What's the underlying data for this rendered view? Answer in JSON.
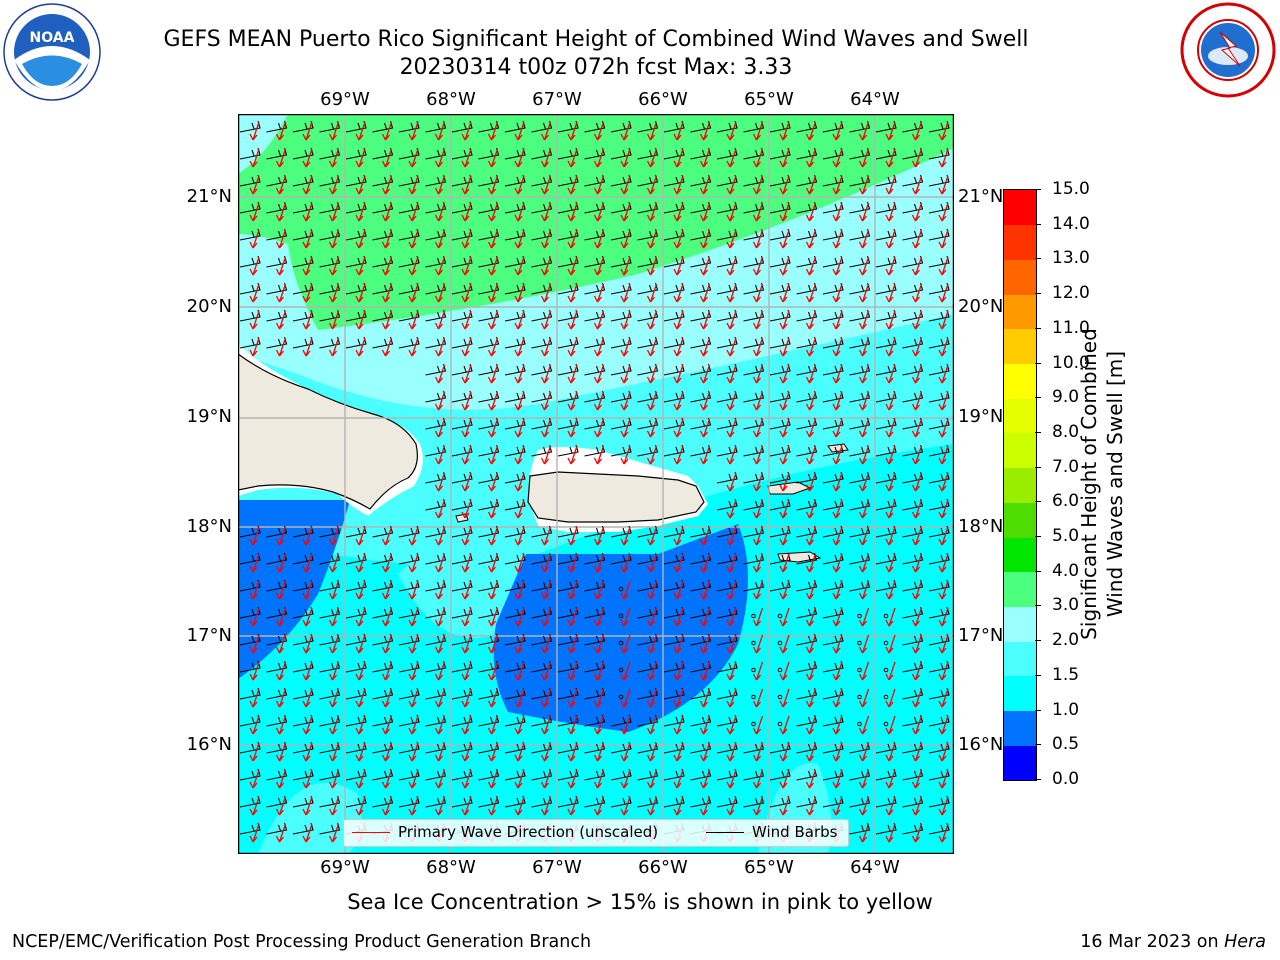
{
  "header": {
    "title_line1": "GEFS MEAN Puerto Rico Significant Height of Combined Wind Waves and Swell",
    "title_line2": "20230314 t00z 072h fcst   Max: 3.33"
  },
  "logos": {
    "left": "noaa-logo",
    "right": "nws-logo",
    "noaa_text": "NOAA"
  },
  "axes": {
    "lon_ticks": [
      "69°W",
      "68°W",
      "67°W",
      "66°W",
      "65°W",
      "64°W"
    ],
    "lat_ticks": [
      "21°N",
      "20°N",
      "19°N",
      "18°N",
      "17°N",
      "16°N"
    ]
  },
  "legend": {
    "primary_wave": "Primary Wave Direction (unscaled)",
    "wind_barbs": "Wind Barbs",
    "primary_wave_color": "#ff0000",
    "wind_barbs_color": "#000000"
  },
  "colorbar": {
    "title_line1": "Significant Height of Combined",
    "title_line2": "Wind Waves and Swell [m]",
    "ticks": [
      "0.0",
      "0.5",
      "1.0",
      "1.5",
      "2.0",
      "3.0",
      "4.0",
      "5.0",
      "6.0",
      "7.0",
      "8.0",
      "9.0",
      "10.0",
      "11.0",
      "12.0",
      "13.0",
      "14.0",
      "15.0"
    ],
    "colors": [
      "#0000ff",
      "#0073ff",
      "#00ffff",
      "#4cffff",
      "#99ffff",
      "#4dff7f",
      "#00e600",
      "#4ddd00",
      "#99ee00",
      "#ccff00",
      "#e6ff00",
      "#ffff00",
      "#ffcc00",
      "#ff9900",
      "#ff6600",
      "#ff3300",
      "#ff0000"
    ]
  },
  "map_colors": {
    "land": "#eeeadf",
    "coast": "#000000",
    "grid": "#b4b4b4"
  },
  "notes": {
    "ice": "Sea Ice Concentration > 15% is shown in pink to yellow"
  },
  "footer": {
    "left": "NCEP/EMC/Verification Post Processing Product Generation Branch",
    "date": "16 Mar 2023 on ",
    "host": "Hera"
  }
}
